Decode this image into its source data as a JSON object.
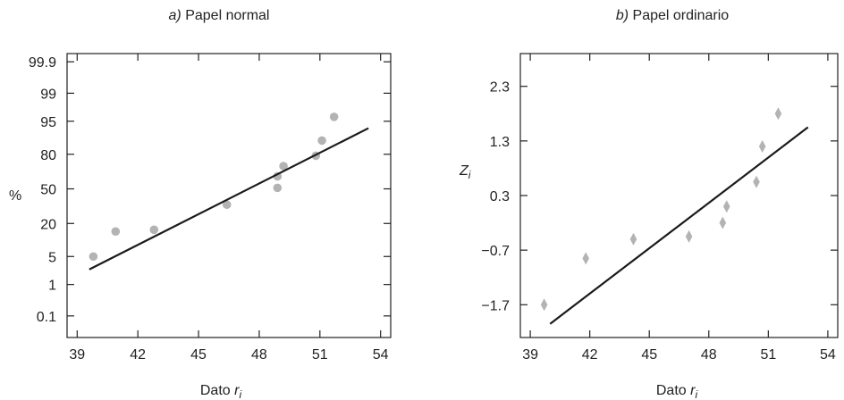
{
  "chart_data": [
    {
      "type": "scatter",
      "title_prefix": "a)",
      "title_text": " Papel normal",
      "xlabel": "Dato ",
      "xlabel_sub": "i",
      "xlabel_var": "r",
      "ylabel": "%",
      "xlim": [
        38.5,
        54.5
      ],
      "x_ticks": [
        "39",
        "42",
        "45",
        "48",
        "51",
        "54"
      ],
      "y_ticks": [
        "0.1",
        "1",
        "5",
        "20",
        "50",
        "80",
        "95",
        "99",
        "99.9"
      ],
      "points": [
        {
          "x": 39.8,
          "y": 5
        },
        {
          "x": 40.9,
          "y": 15
        },
        {
          "x": 42.8,
          "y": 16
        },
        {
          "x": 46.4,
          "y": 35
        },
        {
          "x": 48.9,
          "y": 51
        },
        {
          "x": 48.9,
          "y": 62
        },
        {
          "x": 49.2,
          "y": 71
        },
        {
          "x": 50.8,
          "y": 79
        },
        {
          "x": 51.1,
          "y": 88
        },
        {
          "x": 51.7,
          "y": 96
        }
      ],
      "fit_line": [
        {
          "x": 39.6,
          "y": 2.5
        },
        {
          "x": 53.4,
          "y": 93
        }
      ],
      "marker": "circle",
      "marker_color": "#b3b3b3"
    },
    {
      "type": "scatter",
      "title_prefix": "b)",
      "title_text": " Papel ordinario",
      "xlabel": "Dato ",
      "xlabel_sub": "i",
      "xlabel_var": "r",
      "ylabel_var": "Z",
      "ylabel_sub": "i",
      "xlim": [
        38.5,
        54.5
      ],
      "ylim": [
        -2.3,
        2.9
      ],
      "x_ticks": [
        "39",
        "42",
        "45",
        "48",
        "51",
        "54"
      ],
      "y_ticks": [
        "−1.7",
        "−0.7",
        "0.3",
        "1.3",
        "2.3"
      ],
      "y_tick_values": [
        -1.7,
        -0.7,
        0.3,
        1.3,
        2.3
      ],
      "points": [
        {
          "x": 39.7,
          "y": -1.7
        },
        {
          "x": 41.8,
          "y": -0.85
        },
        {
          "x": 44.2,
          "y": -0.5
        },
        {
          "x": 47.0,
          "y": -0.45
        },
        {
          "x": 48.7,
          "y": -0.2
        },
        {
          "x": 48.9,
          "y": 0.1
        },
        {
          "x": 50.4,
          "y": 0.55
        },
        {
          "x": 50.7,
          "y": 1.2
        },
        {
          "x": 51.5,
          "y": 1.8
        }
      ],
      "fit_line": [
        {
          "x": 40.0,
          "y": -2.05
        },
        {
          "x": 53.0,
          "y": 1.55
        }
      ],
      "marker": "diamond",
      "marker_color": "#b3b3b3"
    }
  ]
}
